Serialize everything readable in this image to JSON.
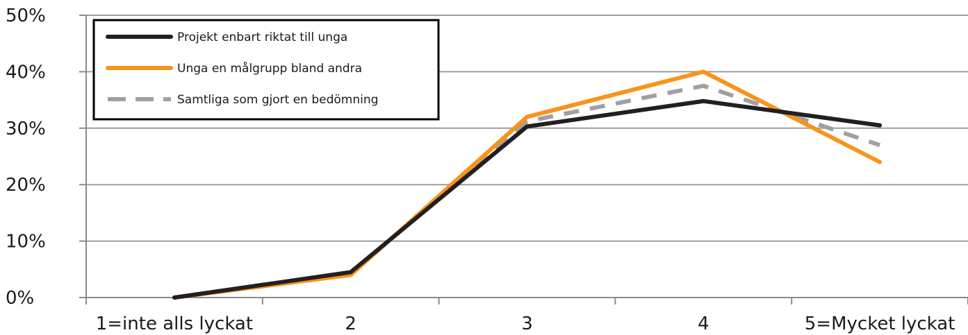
{
  "chart_data": {
    "type": "line",
    "title": "",
    "xlabel": "",
    "ylabel": "",
    "categories": [
      "1=inte alls lyckat",
      "2",
      "3",
      "4",
      "5=Mycket  lyckat"
    ],
    "y_ticks": [
      "0%",
      "10%",
      "20%",
      "30%",
      "40%",
      "50%"
    ],
    "ylim": [
      0,
      50
    ],
    "grid": true,
    "legend_position": "top-left",
    "series": [
      {
        "name": "Projekt  enbart riktat till unga",
        "values": [
          0,
          4.5,
          30.3,
          34.8,
          30.5
        ],
        "color": "#231f20",
        "dash": "solid"
      },
      {
        "name": "Unga  en målgrupp bland  andra",
        "values": [
          0,
          4.0,
          32.0,
          40.0,
          24.0
        ],
        "color": "#f7941d",
        "dash": "solid"
      },
      {
        "name": "Samtliga som gjort en bedömning",
        "values": [
          0,
          4.2,
          31.2,
          37.5,
          27.0
        ],
        "color": "#a0a0a2",
        "dash": "dashed"
      }
    ]
  }
}
